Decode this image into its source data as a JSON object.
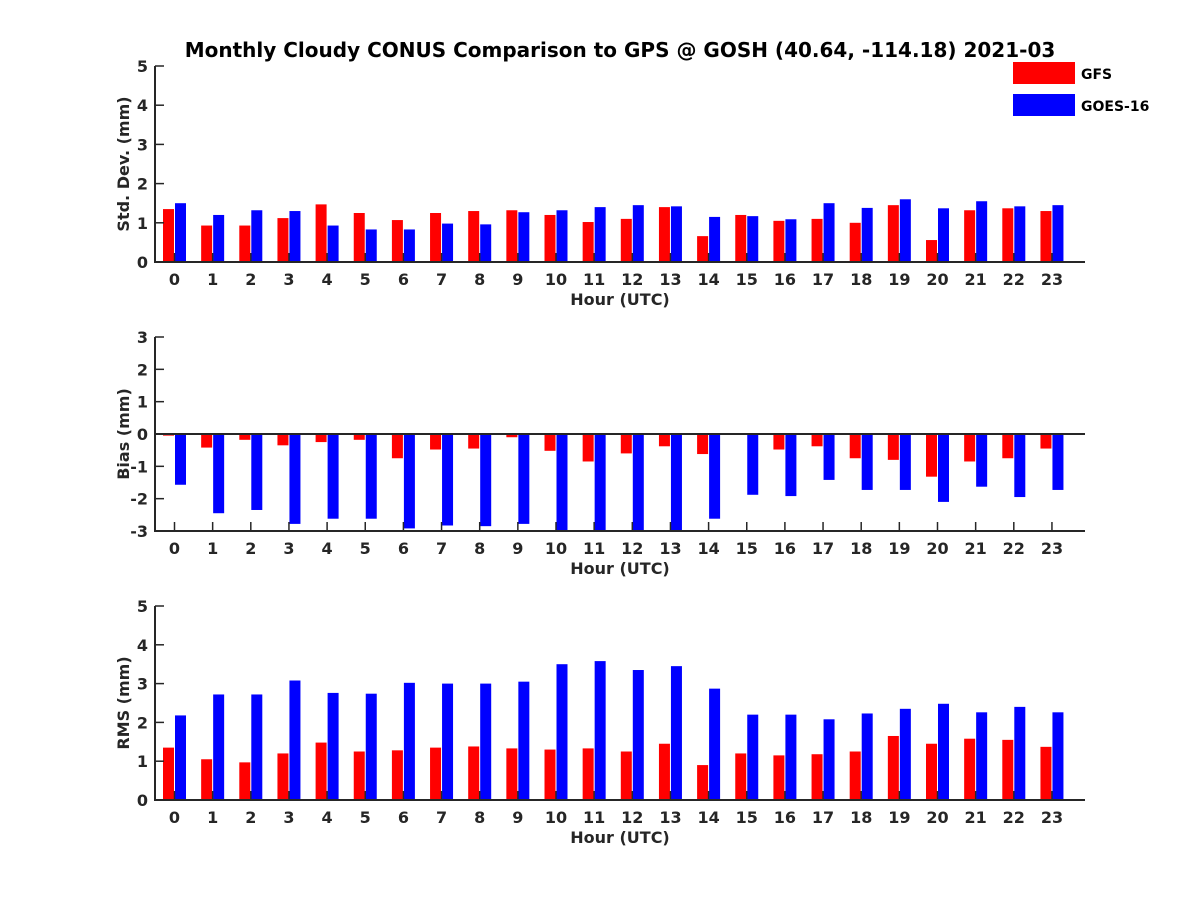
{
  "figure": {
    "title": "Monthly Cloudy CONUS Comparison to GPS @ GOSH (40.64, -114.18) 2021-03"
  },
  "legend": {
    "placement": "top-right",
    "items": [
      {
        "label": "GFS",
        "color": "#ff0000"
      },
      {
        "label": "GOES-16",
        "color": "#0000ff"
      }
    ]
  },
  "chart_data": [
    {
      "type": "bar",
      "xlabel": "Hour (UTC)",
      "ylabel": "Std. Dev. (mm)",
      "ylim": [
        0,
        5
      ],
      "yticks": [
        "0",
        "1",
        "2",
        "3",
        "4",
        "5"
      ],
      "categories": [
        "0",
        "1",
        "2",
        "3",
        "4",
        "5",
        "6",
        "7",
        "8",
        "9",
        "10",
        "11",
        "12",
        "13",
        "14",
        "15",
        "16",
        "17",
        "18",
        "19",
        "20",
        "21",
        "22",
        "23"
      ],
      "series": [
        {
          "name": "GFS",
          "color": "#ff0000",
          "values": [
            1.35,
            0.93,
            0.93,
            1.12,
            1.47,
            1.25,
            1.07,
            1.25,
            1.3,
            1.32,
            1.2,
            1.02,
            1.1,
            1.4,
            0.66,
            1.2,
            1.05,
            1.1,
            1.0,
            1.45,
            0.56,
            1.32,
            1.37,
            1.3
          ]
        },
        {
          "name": "GOES-16",
          "color": "#0000ff",
          "values": [
            1.5,
            1.2,
            1.32,
            1.3,
            0.93,
            0.83,
            0.83,
            0.98,
            0.96,
            1.27,
            1.32,
            1.4,
            1.45,
            1.42,
            1.15,
            1.17,
            1.09,
            1.5,
            1.38,
            1.6,
            1.37,
            1.55,
            1.42,
            1.45
          ]
        }
      ]
    },
    {
      "type": "bar",
      "xlabel": "Hour (UTC)",
      "ylabel": "Bias (mm)",
      "ylim": [
        -3,
        3
      ],
      "yticks": [
        "-3",
        "-2",
        "-1",
        "0",
        "1",
        "2",
        "3"
      ],
      "zero_line": true,
      "categories": [
        "0",
        "1",
        "2",
        "3",
        "4",
        "5",
        "6",
        "7",
        "8",
        "9",
        "10",
        "11",
        "12",
        "13",
        "14",
        "15",
        "16",
        "17",
        "18",
        "19",
        "20",
        "21",
        "22",
        "23"
      ],
      "series": [
        {
          "name": "GFS",
          "color": "#ff0000",
          "values": [
            -0.05,
            -0.42,
            -0.18,
            -0.35,
            -0.25,
            -0.18,
            -0.75,
            -0.48,
            -0.45,
            -0.1,
            -0.52,
            -0.85,
            -0.6,
            -0.38,
            -0.62,
            -0.03,
            -0.48,
            -0.38,
            -0.75,
            -0.8,
            -1.32,
            -0.85,
            -0.75,
            -0.45
          ]
        },
        {
          "name": "GOES-16",
          "color": "#0000ff",
          "values": [
            -1.57,
            -2.45,
            -2.35,
            -2.78,
            -2.62,
            -2.62,
            -2.92,
            -2.83,
            -2.85,
            -2.78,
            -3.0,
            -3.0,
            -3.0,
            -3.0,
            -2.62,
            -1.88,
            -1.92,
            -1.42,
            -1.73,
            -1.73,
            -2.1,
            -1.63,
            -1.95,
            -1.73
          ]
        }
      ]
    },
    {
      "type": "bar",
      "xlabel": "Hour (UTC)",
      "ylabel": "RMS (mm)",
      "ylim": [
        0,
        5
      ],
      "yticks": [
        "0",
        "1",
        "2",
        "3",
        "4",
        "5"
      ],
      "categories": [
        "0",
        "1",
        "2",
        "3",
        "4",
        "5",
        "6",
        "7",
        "8",
        "9",
        "10",
        "11",
        "12",
        "13",
        "14",
        "15",
        "16",
        "17",
        "18",
        "19",
        "20",
        "21",
        "22",
        "23"
      ],
      "series": [
        {
          "name": "GFS",
          "color": "#ff0000",
          "values": [
            1.35,
            1.05,
            0.97,
            1.2,
            1.48,
            1.25,
            1.28,
            1.35,
            1.38,
            1.33,
            1.3,
            1.33,
            1.25,
            1.45,
            0.9,
            1.2,
            1.15,
            1.18,
            1.25,
            1.65,
            1.45,
            1.58,
            1.55,
            1.37
          ]
        },
        {
          "name": "GOES-16",
          "color": "#0000ff",
          "values": [
            2.18,
            2.72,
            2.72,
            3.08,
            2.76,
            2.74,
            3.02,
            3.0,
            3.0,
            3.05,
            3.5,
            3.58,
            3.35,
            3.45,
            2.87,
            2.2,
            2.2,
            2.08,
            2.23,
            2.35,
            2.48,
            2.26,
            2.4,
            2.26
          ]
        }
      ]
    }
  ]
}
